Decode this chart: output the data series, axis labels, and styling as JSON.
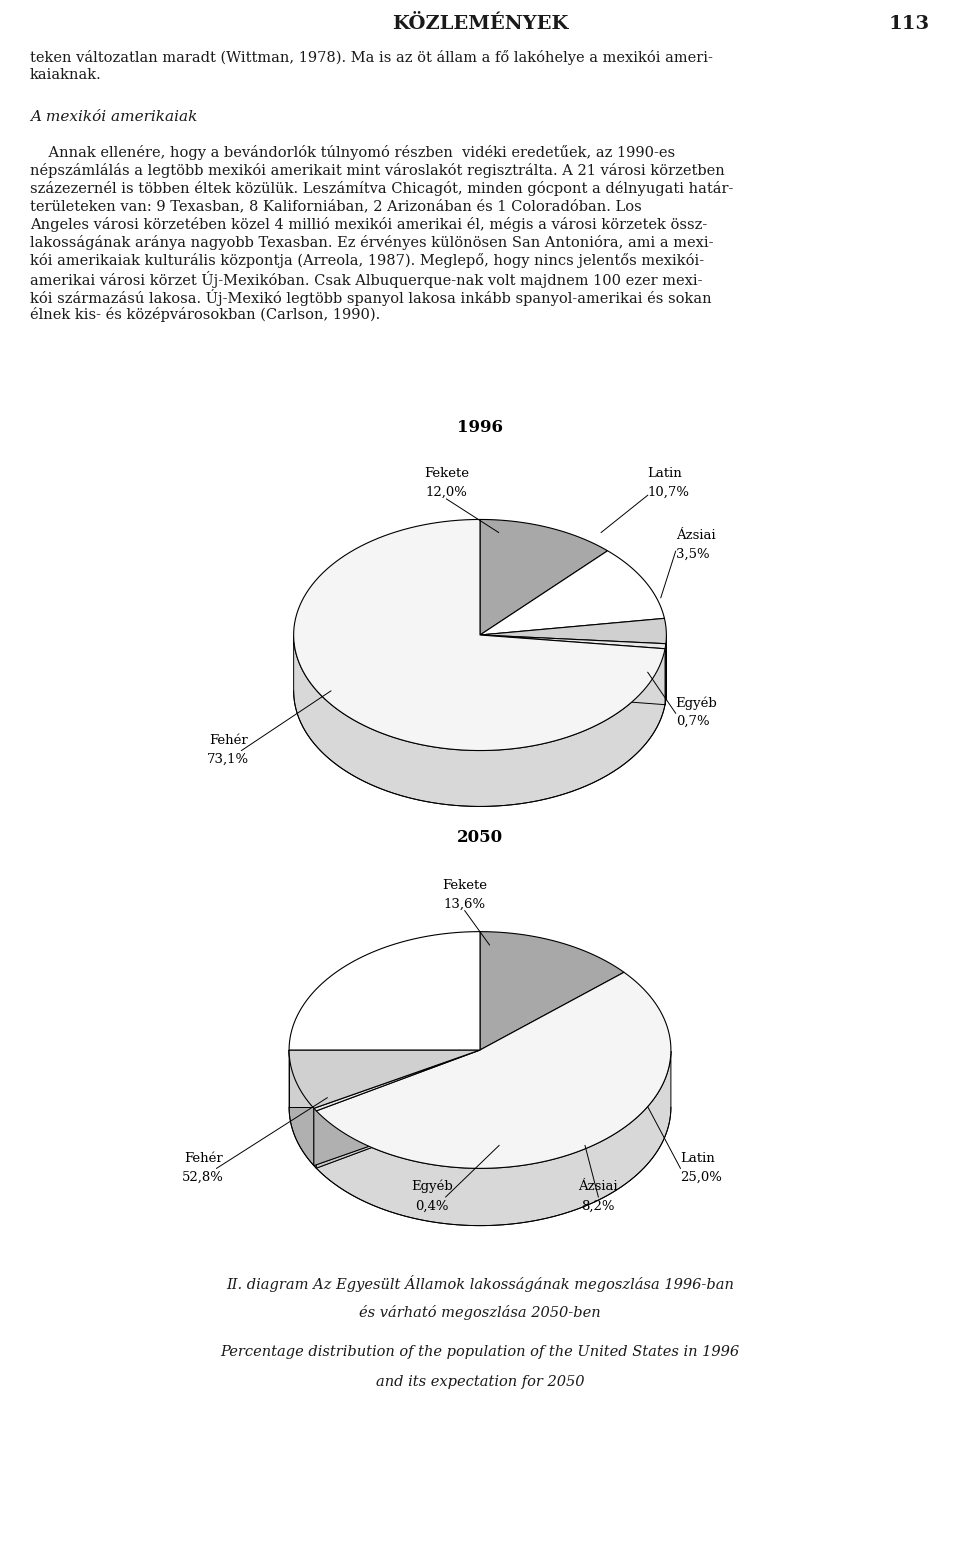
{
  "page_header": "KÖZLEMÉNYEK",
  "page_number": "113",
  "chart1_title": "1996",
  "chart1_labels": [
    "Fekete",
    "Latin",
    "Ázsiai",
    "Egyéb",
    "Fehér"
  ],
  "chart1_values": [
    12.0,
    10.7,
    3.5,
    0.7,
    73.1
  ],
  "chart1_top_colors": [
    "#a8a8a8",
    "#ffffff",
    "#d0d0d0",
    "#e8e8e8",
    "#f5f5f5"
  ],
  "chart1_side_colors": [
    "#888888",
    "#d0d0d0",
    "#b0b0b0",
    "#c8c8c8",
    "#d8d8d8"
  ],
  "chart2_title": "2050",
  "chart2_labels": [
    "Fekete",
    "Fehér",
    "Egyéb",
    "Ázsiai",
    "Latin"
  ],
  "chart2_values": [
    13.6,
    52.8,
    0.4,
    8.2,
    25.0
  ],
  "chart2_top_colors": [
    "#a8a8a8",
    "#f5f5f5",
    "#e8e8e8",
    "#d0d0d0",
    "#ffffff"
  ],
  "chart2_side_colors": [
    "#888888",
    "#d8d8d8",
    "#c8c8c8",
    "#b0b0b0",
    "#d0d0d0"
  ],
  "caption_hu_1": "II. diagram Az Egyesült Államok lakosságának megoszlása 1996-ban",
  "caption_hu_2": "és várható megoszlása 2050-ben",
  "caption_en_1": "Percentage distribution of the population of the United States in 1996",
  "caption_en_2": "and its expectation for 2050",
  "bg_color": "#ffffff",
  "text_color": "#1a1a1a",
  "text_lines": [
    "teken változatlan maradt (Wittman, 1978). Ma is az öt állam a fő lakóhelye a mexikói ameri-",
    "kaiaknak."
  ],
  "section_title": "A mexikói amerikaiak",
  "body_lines": [
    "    Annak ellenére, hogy a bevándorlók túlnyomó részben  vidéki eredetűek, az 1990-es",
    "népszámlálás a legtöbb mexikói amerikait mint városlakót regisztrálta. A 21 városi körzetben",
    "százezernél is többen éltek közülük. Leszámítva Chicagót, minden gócpont a délnyugati határ-",
    "területeken van: 9 Texasban, 8 Kaliforniában, 2 Arizonában és 1 Coloradóban. Los",
    "Angeles városi körzetében közel 4 millió mexikói amerikai él, mégis a városi körzetek össz-",
    "lakosságának aránya nagyobb Texasban. Ez érvényes különösen San Antonióra, ami a mexi-",
    "kói amerikaiak kulturális központja (Arreola, 1987). Meglepő, hogy nincs jelentős mexikói-",
    "amerikai városi körzet Új-Mexikóban. Csak Albuquerque-nak volt majdnem 100 ezer mexi-",
    "kói származású lakosa. Új-Mexikó legtöbb spanyol lakosa inkább spanyol-amerikai és sokan",
    "élnek kis- és középvárosokban (Carlson, 1990)."
  ]
}
